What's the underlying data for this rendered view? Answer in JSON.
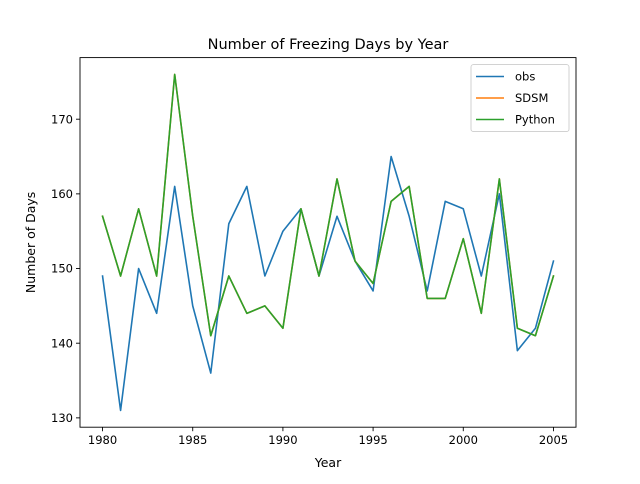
{
  "chart_data": {
    "type": "line",
    "title": "Number of Freezing Days by Year",
    "xlabel": "Year",
    "ylabel": "Number of Days",
    "xlim": [
      1978.75,
      2006.25
    ],
    "ylim": [
      128.75,
      178.25
    ],
    "xticks": [
      1980,
      1985,
      1990,
      1995,
      2000,
      2005
    ],
    "yticks": [
      130,
      140,
      150,
      160,
      170
    ],
    "grid": false,
    "legend_position": "top-right",
    "x": [
      1980,
      1981,
      1982,
      1983,
      1984,
      1985,
      1986,
      1987,
      1988,
      1989,
      1990,
      1991,
      1992,
      1993,
      1994,
      1995,
      1996,
      1997,
      1998,
      1999,
      2000,
      2001,
      2002,
      2003,
      2004,
      2005
    ],
    "series": [
      {
        "name": "obs",
        "color": "#1f77b4",
        "values": [
          149,
          131,
          150,
          144,
          161,
          145,
          136,
          156,
          161,
          149,
          155,
          158,
          149,
          157,
          151,
          147,
          165,
          157,
          147,
          159,
          158,
          149,
          160,
          139,
          142,
          151
        ]
      },
      {
        "name": "SDSM",
        "color": "#ff7f0e",
        "values": [
          157,
          149,
          158,
          149,
          176,
          157,
          141,
          149,
          144,
          145,
          142,
          158,
          149,
          162,
          151,
          148,
          159,
          161,
          146,
          146,
          154,
          144,
          162,
          142,
          141,
          149
        ]
      },
      {
        "name": "Python",
        "color": "#2ca02c",
        "values": [
          157,
          149,
          158,
          149,
          176,
          157,
          141,
          149,
          144,
          145,
          142,
          158,
          149,
          162,
          151,
          148,
          159,
          161,
          146,
          146,
          154,
          144,
          162,
          142,
          141,
          149
        ]
      }
    ]
  }
}
